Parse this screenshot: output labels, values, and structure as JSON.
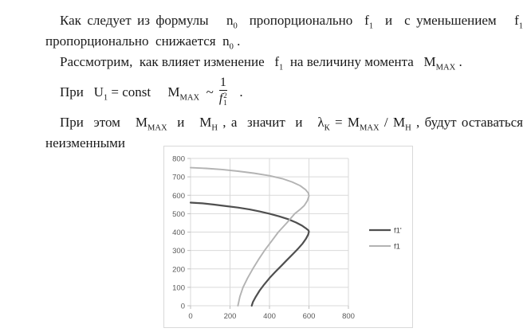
{
  "page": {
    "background": "#ffffff",
    "text_color": "#1a1a1a"
  },
  "document": {
    "lines": [
      {
        "indent": true,
        "stretch": true,
        "segments": [
          {
            "t": "Как следует из формулы   "
          },
          {
            "t": "n"
          },
          {
            "t": "0",
            "v": "sub"
          },
          {
            "t": "  пропорционально  "
          },
          {
            "t": "f"
          },
          {
            "t": "1",
            "v": "sub"
          },
          {
            "t": "  и  с уменьшением   "
          },
          {
            "t": "f"
          },
          {
            "t": "1",
            "v": "sub"
          }
        ]
      },
      {
        "indent": false,
        "stretch": false,
        "segments": [
          {
            "t": "пропорционально  снижается  "
          },
          {
            "t": "n"
          },
          {
            "t": "0",
            "v": "sub"
          },
          {
            "t": " ."
          }
        ]
      },
      {
        "indent": true,
        "stretch": false,
        "segments": [
          {
            "t": "Рассмотрим,  как влияет изменение   "
          },
          {
            "t": "f"
          },
          {
            "t": "1",
            "v": "sub"
          },
          {
            "t": "  на величину момента   "
          },
          {
            "t": "M"
          },
          {
            "t": "MAX",
            "v": "sub"
          },
          {
            "t": " ."
          }
        ]
      },
      {
        "indent": true,
        "stretch": false,
        "formula": true,
        "segments": [
          {
            "t": "При   "
          },
          {
            "t": "U"
          },
          {
            "t": "1",
            "v": "sub"
          },
          {
            "t": " = const     "
          },
          {
            "t": "M"
          },
          {
            "t": "MAX",
            "v": "sub"
          },
          {
            "t": "  ~"
          },
          {
            "frac": {
              "num": "1",
              "den_base": "f",
              "den_sup": "2",
              "den_sub": "1"
            }
          },
          {
            "t": "  ."
          }
        ]
      },
      {
        "indent": true,
        "stretch": true,
        "segments": [
          {
            "t": "При  этом   "
          },
          {
            "t": "M"
          },
          {
            "t": "MAX",
            "v": "sub"
          },
          {
            "t": "  и   "
          },
          {
            "t": "M"
          },
          {
            "t": "Н",
            "v": "sub"
          },
          {
            "t": " , а  значит  и   "
          },
          {
            "t": "λ"
          },
          {
            "t": "К",
            "v": "sub"
          },
          {
            "t": " = "
          },
          {
            "t": "M"
          },
          {
            "t": "MAX",
            "v": "sub"
          },
          {
            "t": " / "
          },
          {
            "t": "M"
          },
          {
            "t": "Н",
            "v": "sub"
          },
          {
            "t": " , будут оставаться"
          }
        ]
      },
      {
        "indent": false,
        "stretch": false,
        "segments": [
          {
            "t": "неизменными"
          }
        ]
      }
    ]
  },
  "chart_data": {
    "type": "line",
    "title": "",
    "xlabel": "",
    "ylabel": "",
    "xlim": [
      0,
      800
    ],
    "ylim": [
      0,
      800
    ],
    "x_ticks": [
      0,
      200,
      400,
      600,
      800
    ],
    "y_ticks": [
      0,
      100,
      200,
      300,
      400,
      500,
      600,
      700,
      800
    ],
    "grid": true,
    "legend_position": "right",
    "colors": {
      "grid": "#d9d9d9",
      "border": "#d9d9d9",
      "tick": "#bfbfbf",
      "tick_text": "#595959",
      "legend_text": "#404040"
    },
    "series": [
      {
        "name": "f1'",
        "color": "#4f4f4f",
        "width": 2.2,
        "points": [
          [
            0,
            560
          ],
          [
            60,
            556
          ],
          [
            120,
            549
          ],
          [
            180,
            541
          ],
          [
            240,
            533
          ],
          [
            300,
            523
          ],
          [
            350,
            512
          ],
          [
            400,
            500
          ],
          [
            450,
            485
          ],
          [
            495,
            470
          ],
          [
            535,
            452
          ],
          [
            565,
            435
          ],
          [
            585,
            420
          ],
          [
            597,
            410
          ],
          [
            600,
            402
          ],
          [
            596,
            386
          ],
          [
            585,
            364
          ],
          [
            568,
            338
          ],
          [
            545,
            310
          ],
          [
            536,
            300
          ],
          [
            518,
            280
          ],
          [
            488,
            248
          ],
          [
            458,
            215
          ],
          [
            444,
            200
          ],
          [
            428,
            182
          ],
          [
            400,
            150
          ],
          [
            373,
            115
          ],
          [
            350,
            82
          ],
          [
            330,
            48
          ],
          [
            316,
            20
          ],
          [
            310,
            0
          ]
        ]
      },
      {
        "name": "f1",
        "color": "#b3b3b3",
        "width": 1.9,
        "points": [
          [
            0,
            750
          ],
          [
            80,
            746
          ],
          [
            160,
            740
          ],
          [
            240,
            731
          ],
          [
            320,
            720
          ],
          [
            400,
            706
          ],
          [
            465,
            690
          ],
          [
            515,
            672
          ],
          [
            555,
            652
          ],
          [
            583,
            630
          ],
          [
            597,
            612
          ],
          [
            600,
            596
          ],
          [
            592,
            570
          ],
          [
            576,
            544
          ],
          [
            554,
            522
          ],
          [
            528,
            500
          ],
          [
            488,
            450
          ],
          [
            445,
            400
          ],
          [
            410,
            350
          ],
          [
            375,
            300
          ],
          [
            344,
            250
          ],
          [
            315,
            200
          ],
          [
            289,
            150
          ],
          [
            266,
            100
          ],
          [
            250,
            50
          ],
          [
            240,
            0
          ]
        ]
      }
    ]
  }
}
